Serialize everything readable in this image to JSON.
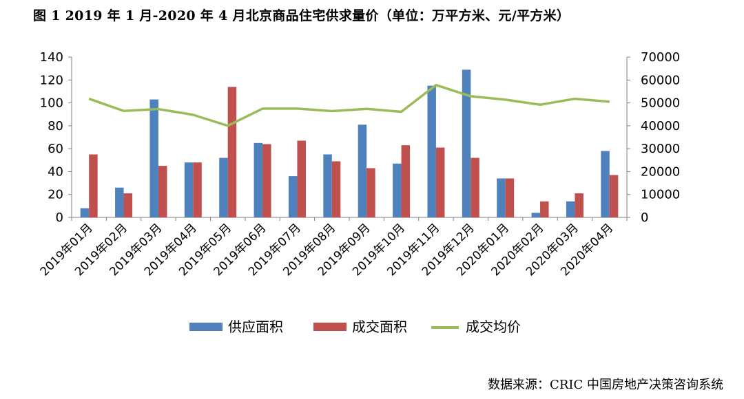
{
  "title": "图 1  2019 年 1 月-2020 年 4 月北京商品住宅供求量价（单位：万平方米、元/平方米）",
  "source": "数据来源：CRIC 中国房地产决策咨询系统",
  "colors": {
    "supply": "#4f81bd",
    "deal": "#c0504d",
    "price": "#9bbb59"
  },
  "chart_data": {
    "type": "bar",
    "categories": [
      "2019年01月",
      "2019年02月",
      "2019年03月",
      "2019年04月",
      "2019年05月",
      "2019年06月",
      "2019年07月",
      "2019年08月",
      "2019年09月",
      "2019年10月",
      "2019年11月",
      "2019年12月",
      "2020年01月",
      "2020年02月",
      "2020年03月",
      "2020年04月"
    ],
    "series": [
      {
        "name": "供应面积",
        "type": "bar",
        "axis": "left",
        "values": [
          8,
          26,
          103,
          48,
          52,
          65,
          36,
          55,
          81,
          47,
          115,
          129,
          34,
          4,
          14,
          58
        ]
      },
      {
        "name": "成交面积",
        "type": "bar",
        "axis": "left",
        "values": [
          55,
          21,
          45,
          48,
          114,
          64,
          67,
          49,
          43,
          63,
          61,
          52,
          34,
          14,
          21,
          37
        ]
      },
      {
        "name": "成交均价",
        "type": "line",
        "axis": "right",
        "values": [
          51800,
          46500,
          47300,
          44800,
          40000,
          47500,
          47500,
          46400,
          47400,
          46100,
          57800,
          52900,
          51400,
          49200,
          51800,
          50500
        ]
      }
    ],
    "ylim_left": [
      0,
      140
    ],
    "yticks_left": [
      0,
      20,
      40,
      60,
      80,
      100,
      120,
      140
    ],
    "ylim_right": [
      0,
      70000
    ],
    "yticks_right": [
      0,
      10000,
      20000,
      30000,
      40000,
      50000,
      60000,
      70000
    ],
    "grid": false,
    "legend": "bottom"
  }
}
